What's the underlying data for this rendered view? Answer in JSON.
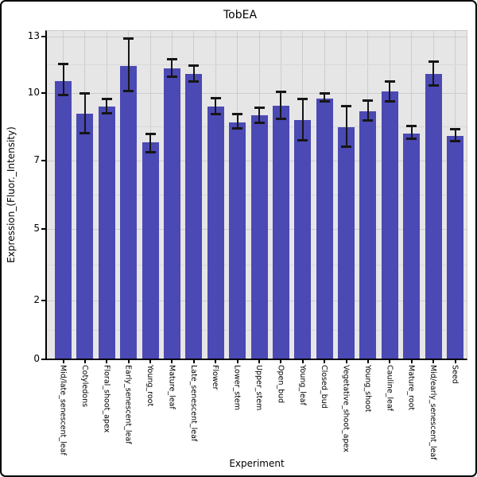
{
  "chart_data": {
    "type": "bar",
    "title": "TobEA",
    "xlabel": "Experiment",
    "ylabel": "Expression_(Fluor._Intensity)",
    "yticks": [
      0,
      2,
      5,
      7,
      10,
      13
    ],
    "ylim": [
      0,
      13.5
    ],
    "grid": true,
    "legend": false,
    "bar_color": "#4b49b4",
    "error_color": "#161616",
    "panel_bg": "#e6e6e6",
    "grid_color": "#cdcdcd",
    "categories": [
      "Mid/late_senescent_leaf",
      "Cotyledons",
      "Floral_shoot_apex",
      "Early_senescent_leaf",
      "Young_root",
      "Mature_leaf",
      "Late_senescent_leaf",
      "Flower",
      "Lower_stem",
      "Upper_stem",
      "Open_bud",
      "Young_leaf",
      "Closed_bud",
      "Vegetative_shoot_apex",
      "Young_shoot",
      "Cauline_leaf",
      "Mature_root",
      "Mid/early_senescent_leaf",
      "Seed"
    ],
    "series": [
      {
        "name": "Expression",
        "values": [
          10.65,
          9.1,
          9.4,
          11.45,
          7.8,
          11.3,
          11.0,
          9.4,
          8.7,
          9.0,
          9.45,
          8.8,
          9.75,
          8.5,
          9.2,
          10.1,
          8.2,
          11.0,
          8.1
        ],
        "error_low": [
          9.9,
          8.2,
          9.1,
          10.1,
          7.35,
          10.85,
          10.6,
          9.05,
          8.4,
          8.65,
          8.85,
          7.9,
          9.6,
          7.6,
          8.75,
          9.6,
          7.95,
          10.4,
          7.85
        ],
        "error_high": [
          11.55,
          10.0,
          9.75,
          12.9,
          8.2,
          11.8,
          11.5,
          9.8,
          9.1,
          9.35,
          10.1,
          9.75,
          10.0,
          9.45,
          9.7,
          10.65,
          8.55,
          11.7,
          8.4
        ]
      }
    ]
  }
}
